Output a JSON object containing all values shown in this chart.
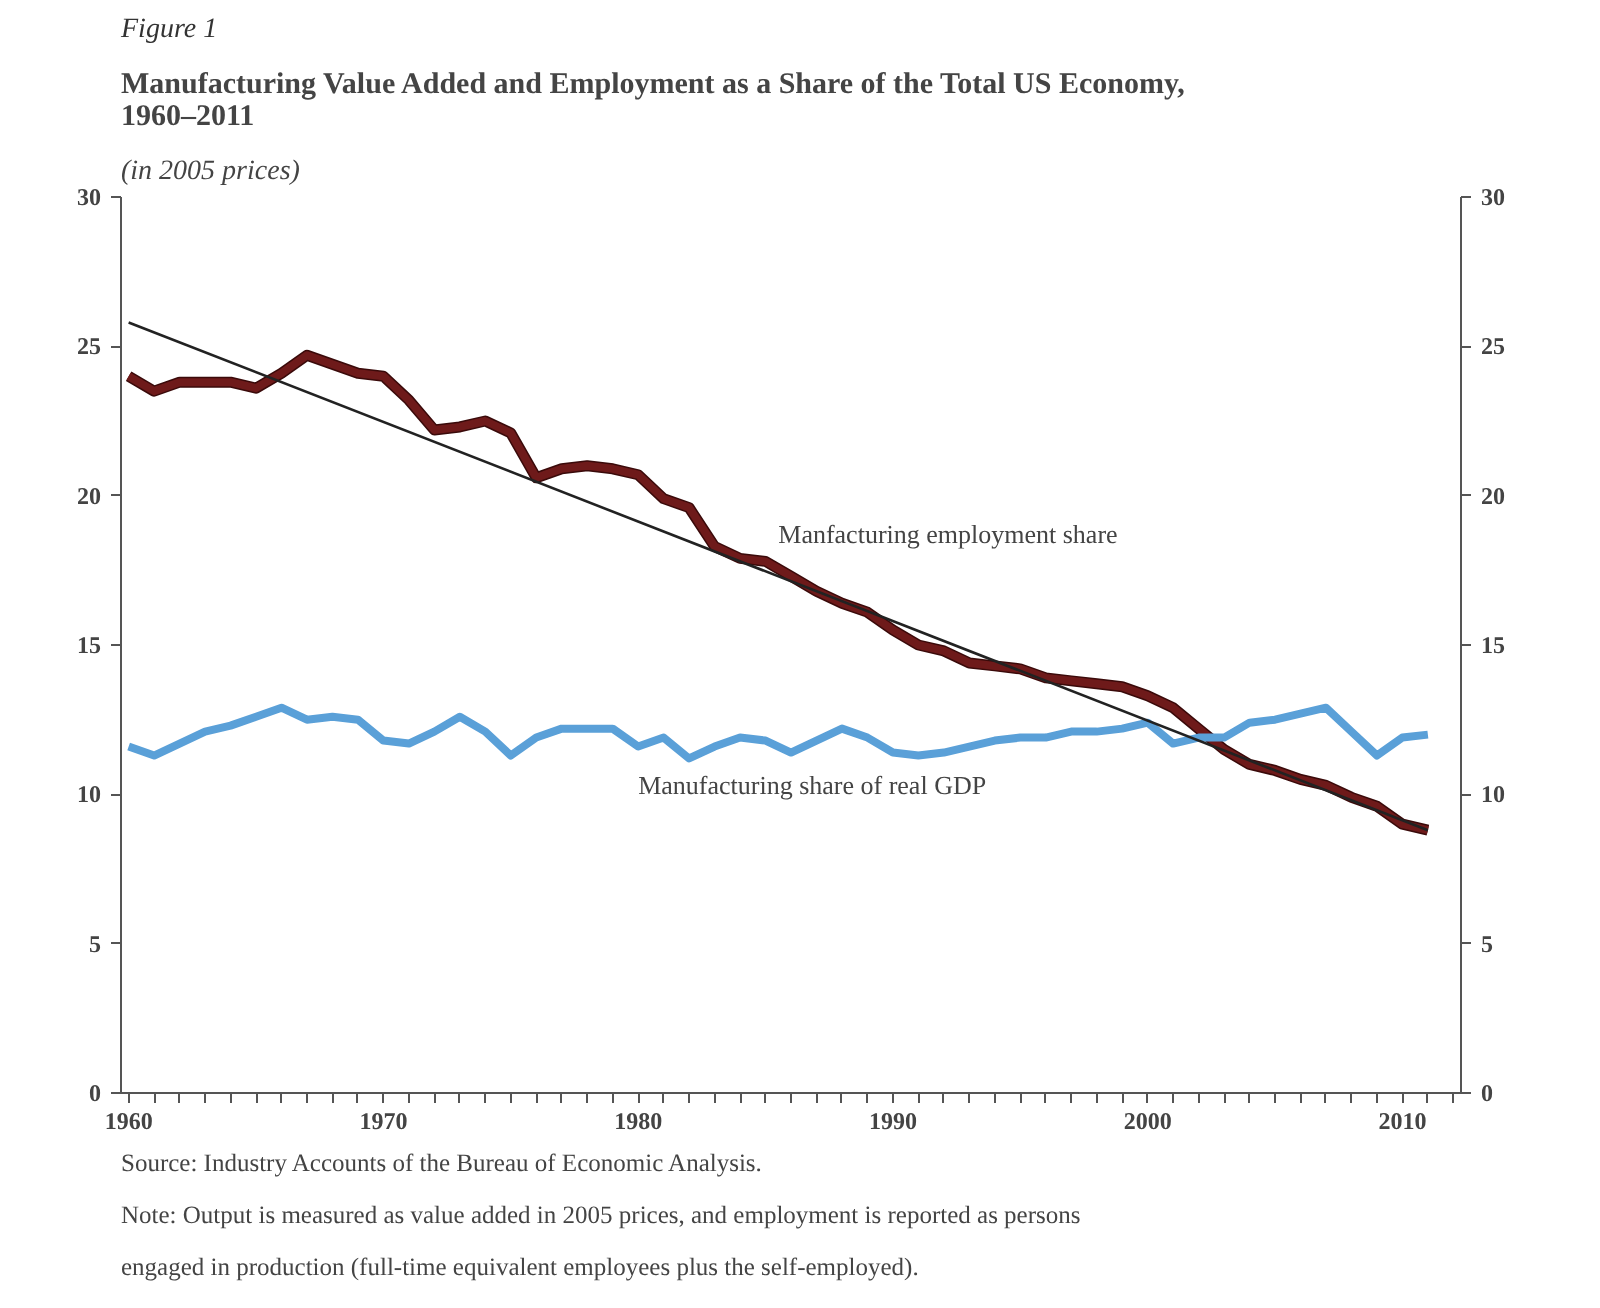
{
  "chart_data": {
    "type": "line",
    "title": "Manufacturing Value Added and Employment as a Share of the Total US Economy, 1960–2011",
    "subtitle": "(in 2005 prices)",
    "annotations": [
      "Figure 1",
      "Source: Industry Accounts of the Bureau of Economic Analysis.",
      "Note: Output is measured as value added in 2005 prices, and employment is reported as persons engaged in production (full-time equivalent employees plus the self-employed)."
    ],
    "x": [
      1960,
      1961,
      1962,
      1963,
      1964,
      1965,
      1966,
      1967,
      1968,
      1969,
      1970,
      1971,
      1972,
      1973,
      1974,
      1975,
      1976,
      1977,
      1978,
      1979,
      1980,
      1981,
      1982,
      1983,
      1984,
      1985,
      1986,
      1987,
      1988,
      1989,
      1990,
      1991,
      1992,
      1993,
      1994,
      1995,
      1996,
      1997,
      1998,
      1999,
      2000,
      2001,
      2002,
      2003,
      2004,
      2005,
      2006,
      2007,
      2008,
      2009,
      2010,
      2011
    ],
    "series": [
      {
        "name": "Manfacturing employment share",
        "color": "#6e1a1a",
        "values": [
          24.0,
          23.5,
          23.8,
          23.8,
          23.8,
          23.6,
          24.1,
          24.7,
          24.4,
          24.1,
          24.0,
          23.2,
          22.2,
          22.3,
          22.5,
          22.1,
          20.6,
          20.9,
          21.0,
          20.9,
          20.7,
          19.9,
          19.6,
          18.3,
          17.9,
          17.8,
          17.3,
          16.8,
          16.4,
          16.1,
          15.5,
          15.0,
          14.8,
          14.4,
          14.3,
          14.2,
          13.9,
          13.8,
          13.7,
          13.6,
          13.3,
          12.9,
          12.2,
          11.5,
          11.0,
          10.8,
          10.5,
          10.3,
          9.9,
          9.6,
          9.0,
          8.8
        ]
      },
      {
        "name": "Manufacturing share of real GDP",
        "color": "#5aa0d8",
        "values": [
          11.6,
          11.3,
          11.7,
          12.1,
          12.3,
          12.6,
          12.9,
          12.5,
          12.6,
          12.5,
          11.8,
          11.7,
          12.1,
          12.6,
          12.1,
          11.3,
          11.9,
          12.2,
          12.2,
          12.2,
          11.6,
          11.9,
          11.2,
          11.6,
          11.9,
          11.8,
          11.4,
          11.8,
          12.2,
          11.9,
          11.4,
          11.3,
          11.4,
          11.6,
          11.8,
          11.9,
          11.9,
          12.1,
          12.1,
          12.2,
          12.4,
          11.7,
          11.9,
          11.9,
          12.4,
          12.5,
          12.7,
          12.9,
          12.1,
          11.3,
          11.9,
          12.0
        ]
      },
      {
        "type": "line",
        "color": "#222222",
        "x": [
          1960,
          2011
        ],
        "values": [
          25.8,
          8.8
        ]
      }
    ],
    "xlim": [
      1959.7,
      2012.3
    ],
    "xticks": [
      1960,
      1970,
      1980,
      1990,
      2000,
      2010
    ],
    "ylim": [
      0,
      30
    ],
    "yticks": [
      0,
      5,
      10,
      15,
      20,
      25,
      30
    ],
    "y2lim": [
      0,
      30
    ],
    "y2ticks": [
      0,
      5,
      10,
      15,
      20,
      25,
      30
    ],
    "grid": false
  }
}
